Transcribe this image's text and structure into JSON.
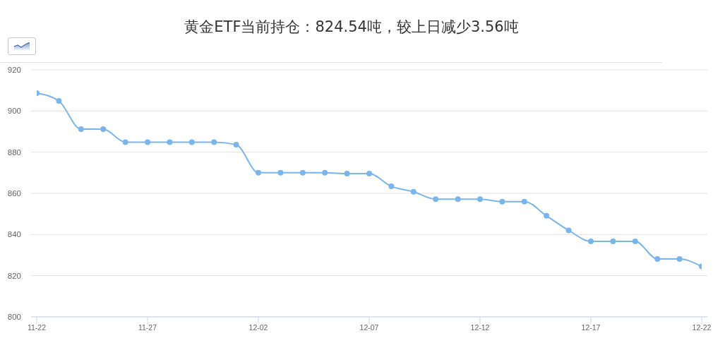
{
  "chart_data": {
    "type": "line",
    "title": "黄金ETF当前持仓：824.54吨，较上日减少3.56吨",
    "categories": [
      "11-22",
      null,
      null,
      null,
      null,
      "11-27",
      null,
      null,
      null,
      null,
      "12-02",
      null,
      null,
      null,
      null,
      "12-07",
      null,
      null,
      null,
      null,
      "12-12",
      null,
      null,
      null,
      null,
      "12-17",
      null,
      null,
      null,
      null,
      "12-22"
    ],
    "values": [
      908.7,
      904.9,
      891.2,
      891.2,
      884.9,
      884.9,
      884.9,
      884.9,
      884.9,
      883.7,
      870.0,
      870.0,
      870.0,
      870.0,
      869.6,
      869.6,
      863.4,
      860.8,
      857.2,
      857.2,
      857.2,
      856.0,
      856.0,
      849.1,
      842.0,
      836.7,
      836.7,
      836.7,
      828.1,
      828.1,
      824.5
    ],
    "color": "#7cb5ec",
    "ylim": [
      800,
      920
    ],
    "yticks": [
      800,
      820,
      840,
      860,
      880,
      900,
      920
    ],
    "grid": "y",
    "marker": "circle",
    "line_style": "solid"
  }
}
